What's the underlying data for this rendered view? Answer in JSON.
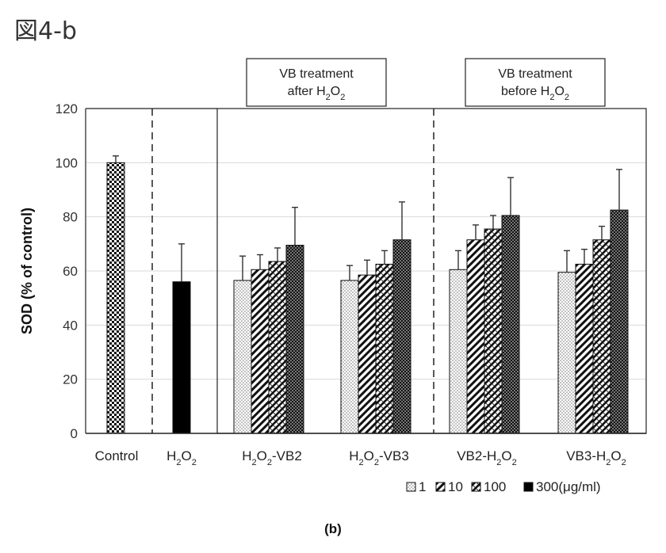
{
  "figure_title": "図4-b",
  "chart_data": {
    "type": "bar",
    "ylabel": "SOD (% of control)",
    "ylim": [
      0,
      120
    ],
    "yticks": [
      0,
      20,
      40,
      60,
      80,
      100,
      120
    ],
    "grid": true,
    "legend_position": "bottom-right",
    "legend_labels": [
      "1",
      "10",
      "100",
      "300(μg/ml)"
    ],
    "series_names": [
      "1",
      "10",
      "100",
      "300"
    ],
    "groups": [
      {
        "label": "Control",
        "label_parts": [
          [
            "Control",
            ""
          ]
        ],
        "values": [
          100
        ],
        "errors": [
          2.5
        ],
        "patterns": [
          "grid"
        ]
      },
      {
        "label": "H2O2",
        "label_parts": [
          [
            "H",
            ""
          ],
          [
            "2",
            "sub"
          ],
          [
            "O",
            ""
          ],
          [
            "2",
            "sub"
          ]
        ],
        "values": [
          56
        ],
        "errors": [
          14
        ],
        "patterns": [
          "solid"
        ]
      },
      {
        "label": "H2O2-VB2",
        "label_parts": [
          [
            "H",
            ""
          ],
          [
            "2",
            "sub"
          ],
          [
            "O",
            ""
          ],
          [
            "2",
            "sub"
          ],
          [
            "-VB2",
            ""
          ]
        ],
        "values": [
          56.5,
          60.5,
          63.5,
          69.5
        ],
        "errors": [
          9,
          5.5,
          5,
          14
        ],
        "patterns": [
          "dots",
          "diag",
          "diag2",
          "checker"
        ]
      },
      {
        "label": "H2O2-VB3",
        "label_parts": [
          [
            "H",
            ""
          ],
          [
            "2",
            "sub"
          ],
          [
            "O",
            ""
          ],
          [
            "2",
            "sub"
          ],
          [
            "-VB3",
            ""
          ]
        ],
        "values": [
          56.5,
          58.5,
          62.5,
          71.5
        ],
        "errors": [
          5.5,
          5.5,
          5,
          14
        ],
        "patterns": [
          "dots",
          "diag",
          "diag2",
          "checker"
        ]
      },
      {
        "label": "VB2-H2O2",
        "label_parts": [
          [
            "VB2-H",
            ""
          ],
          [
            "2",
            "sub"
          ],
          [
            "O",
            ""
          ],
          [
            "2",
            "sub"
          ]
        ],
        "values": [
          60.5,
          71.5,
          75.5,
          80.5
        ],
        "errors": [
          7,
          5.5,
          5,
          14
        ],
        "patterns": [
          "dots",
          "diag",
          "diag2",
          "checker"
        ]
      },
      {
        "label": "VB3-H2O2",
        "label_parts": [
          [
            "VB3-H",
            ""
          ],
          [
            "2",
            "sub"
          ],
          [
            "O",
            ""
          ],
          [
            "2",
            "sub"
          ]
        ],
        "values": [
          59.5,
          62.5,
          71.5,
          82.5
        ],
        "errors": [
          8,
          5.5,
          5,
          15
        ],
        "patterns": [
          "dots",
          "diag",
          "diag2",
          "checker"
        ]
      }
    ],
    "annotation_boxes": [
      {
        "line1": "VB treatment",
        "line2_parts": [
          [
            "after H",
            ""
          ],
          [
            "2",
            "sub"
          ],
          [
            "O",
            ""
          ],
          [
            "2",
            "sub"
          ]
        ]
      },
      {
        "line1": "VB treatment",
        "line2_parts": [
          [
            "before H",
            ""
          ],
          [
            "2",
            "sub"
          ],
          [
            "O",
            ""
          ],
          [
            "2",
            "sub"
          ]
        ]
      }
    ],
    "panel_label": "(b)"
  }
}
